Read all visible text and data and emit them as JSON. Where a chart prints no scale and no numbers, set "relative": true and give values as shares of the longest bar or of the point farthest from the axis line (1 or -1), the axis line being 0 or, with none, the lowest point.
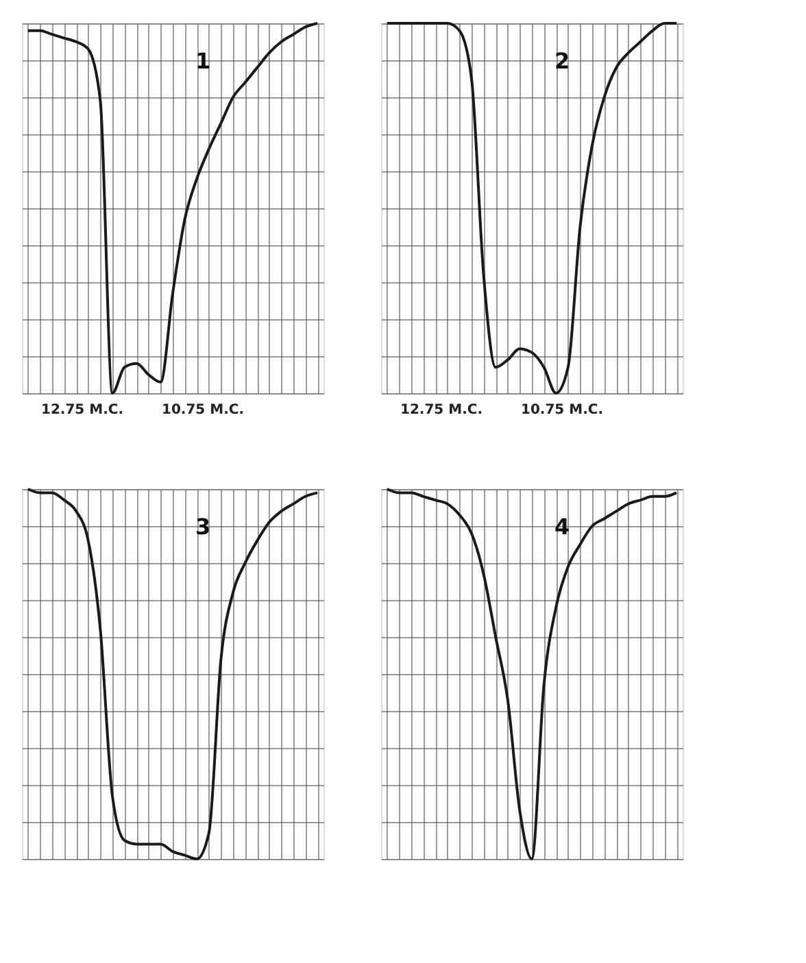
{
  "chart_data": [
    {
      "type": "line",
      "title": "1",
      "relative": true,
      "grid": true,
      "tick_labels": false,
      "marker": "none",
      "line_style": "solid",
      "categories": [
        null,
        null,
        null,
        null,
        null,
        null,
        null,
        null,
        null,
        null,
        null,
        null,
        null,
        null,
        null,
        null,
        null,
        null,
        null,
        null,
        null,
        null,
        null,
        null,
        null
      ],
      "series": [
        {
          "color": "#1a1a1a",
          "values": [
            0.98,
            0.98,
            0.97,
            0.96,
            0.95,
            0.93,
            0.79,
            0.0,
            0.07,
            0.08,
            0.05,
            0.03,
            0.27,
            0.47,
            0.58,
            0.66,
            0.73,
            0.8,
            0.84,
            0.88,
            0.92,
            0.95,
            0.97,
            0.99,
            1.0
          ]
        }
      ],
      "annotations": [
        "12.75 M.C.",
        "10.75 M.C."
      ]
    },
    {
      "type": "line",
      "title": "2",
      "relative": true,
      "grid": true,
      "tick_labels": false,
      "marker": "none",
      "line_style": "solid",
      "categories": [
        null,
        null,
        null,
        null,
        null,
        null,
        null,
        null,
        null,
        null,
        null,
        null,
        null,
        null,
        null,
        null,
        null,
        null,
        null,
        null,
        null,
        null,
        null,
        null,
        null
      ],
      "series": [
        {
          "color": "#1a1a1a",
          "values": [
            1.0,
            1.0,
            1.0,
            1.0,
            1.0,
            1.0,
            0.98,
            0.85,
            0.32,
            0.07,
            0.09,
            0.12,
            0.11,
            0.07,
            0.0,
            0.07,
            0.45,
            0.67,
            0.8,
            0.88,
            0.92,
            0.95,
            0.98,
            1.0,
            1.0
          ]
        }
      ],
      "annotations": [
        "12.75 M.C.",
        "10.75 M.C."
      ]
    },
    {
      "type": "line",
      "title": "3",
      "relative": true,
      "grid": true,
      "tick_labels": false,
      "marker": "none",
      "line_style": "solid",
      "categories": [
        null,
        null,
        null,
        null,
        null,
        null,
        null,
        null,
        null,
        null,
        null,
        null,
        null,
        null,
        null,
        null,
        null,
        null,
        null,
        null,
        null,
        null,
        null,
        null,
        null
      ],
      "series": [
        {
          "color": "#1a1a1a",
          "values": [
            1.0,
            0.99,
            0.99,
            0.97,
            0.94,
            0.86,
            0.62,
            0.17,
            0.05,
            0.04,
            0.04,
            0.04,
            0.02,
            0.01,
            0.0,
            0.07,
            0.54,
            0.72,
            0.8,
            0.86,
            0.91,
            0.94,
            0.96,
            0.98,
            0.99
          ]
        }
      ]
    },
    {
      "type": "line",
      "title": "4",
      "relative": true,
      "grid": true,
      "tick_labels": false,
      "marker": "none",
      "line_style": "solid",
      "categories": [
        null,
        null,
        null,
        null,
        null,
        null,
        null,
        null,
        null,
        null,
        null,
        null,
        null,
        null,
        null,
        null,
        null,
        null,
        null,
        null,
        null,
        null,
        null,
        null,
        null
      ],
      "series": [
        {
          "color": "#1a1a1a",
          "values": [
            1.0,
            0.99,
            0.99,
            0.98,
            0.97,
            0.96,
            0.93,
            0.88,
            0.77,
            0.6,
            0.43,
            0.13,
            0.0,
            0.47,
            0.68,
            0.79,
            0.85,
            0.9,
            0.92,
            0.94,
            0.96,
            0.97,
            0.98,
            0.98,
            0.99
          ]
        }
      ]
    }
  ]
}
